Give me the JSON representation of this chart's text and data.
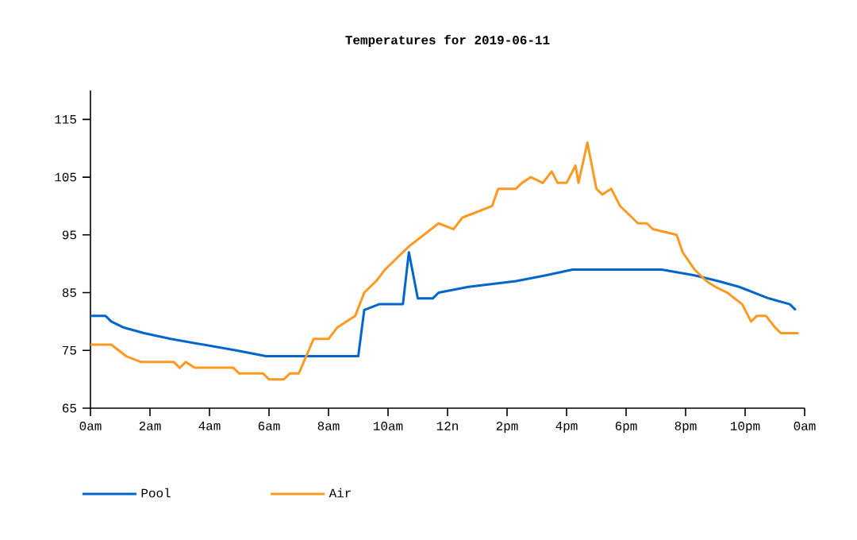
{
  "chart_data": {
    "type": "line",
    "title": "Temperatures for 2019-06-11",
    "xlim": [
      "2019-06-11T00:00",
      "2019-06-12T00:00"
    ],
    "ylim": [
      65,
      120
    ],
    "xticks": [
      {
        "value": "2019-06-11T00:00",
        "label": "0am"
      },
      {
        "value": "2019-06-11T02:00",
        "label": "2am"
      },
      {
        "value": "2019-06-11T04:00",
        "label": "4am"
      },
      {
        "value": "2019-06-11T06:00",
        "label": "6am"
      },
      {
        "value": "2019-06-11T08:00",
        "label": "8am"
      },
      {
        "value": "2019-06-11T10:00",
        "label": "10am"
      },
      {
        "value": "2019-06-11T12:00",
        "label": "12n"
      },
      {
        "value": "2019-06-11T14:00",
        "label": "2pm"
      },
      {
        "value": "2019-06-11T16:00",
        "label": "4pm"
      },
      {
        "value": "2019-06-11T18:00",
        "label": "6pm"
      },
      {
        "value": "2019-06-11T20:00",
        "label": "8pm"
      },
      {
        "value": "2019-06-11T22:00",
        "label": "10pm"
      },
      {
        "value": "2019-06-12T00:00",
        "label": "0am"
      }
    ],
    "yticks": [
      65,
      75,
      85,
      95,
      105,
      115
    ],
    "legend": "bottom",
    "marker": "none",
    "line_style": "solid",
    "series": [
      {
        "name": "Pool",
        "color": "#0066cc",
        "x": [
          "2019-06-11T00:00",
          "2019-06-11T00:30",
          "2019-06-11T00:42",
          "2019-06-11T01:06",
          "2019-06-11T01:48",
          "2019-06-11T02:42",
          "2019-06-11T03:48",
          "2019-06-11T04:54",
          "2019-06-11T05:54",
          "2019-06-11T09:00",
          "2019-06-11T09:12",
          "2019-06-11T09:42",
          "2019-06-11T10:30",
          "2019-06-11T10:42",
          "2019-06-11T11:00",
          "2019-06-11T11:30",
          "2019-06-11T11:42",
          "2019-06-11T12:42",
          "2019-06-11T14:18",
          "2019-06-11T15:18",
          "2019-06-11T16:12",
          "2019-06-11T19:12",
          "2019-06-11T20:18",
          "2019-06-11T21:06",
          "2019-06-11T21:48",
          "2019-06-11T22:18",
          "2019-06-11T22:48",
          "2019-06-11T23:30",
          "2019-06-11T23:42"
        ],
        "values": [
          81,
          81,
          80,
          79,
          78,
          77,
          76,
          75,
          74,
          74,
          82,
          83,
          83,
          92,
          84,
          84,
          85,
          86,
          87,
          88,
          89,
          89,
          88,
          87,
          86,
          85,
          84,
          83,
          82
        ]
      },
      {
        "name": "Air",
        "color": "#ff9922",
        "x": [
          "2019-06-11T00:00",
          "2019-06-11T00:42",
          "2019-06-11T01:12",
          "2019-06-11T01:42",
          "2019-06-11T02:48",
          "2019-06-11T03:00",
          "2019-06-11T03:12",
          "2019-06-11T03:30",
          "2019-06-11T04:48",
          "2019-06-11T05:00",
          "2019-06-11T05:48",
          "2019-06-11T06:00",
          "2019-06-11T06:30",
          "2019-06-11T06:42",
          "2019-06-11T07:00",
          "2019-06-11T07:30",
          "2019-06-11T08:00",
          "2019-06-11T08:18",
          "2019-06-11T08:54",
          "2019-06-11T09:12",
          "2019-06-11T09:36",
          "2019-06-11T09:54",
          "2019-06-11T10:42",
          "2019-06-11T11:12",
          "2019-06-11T11:42",
          "2019-06-11T12:12",
          "2019-06-11T12:30",
          "2019-06-11T13:00",
          "2019-06-11T13:30",
          "2019-06-11T13:42",
          "2019-06-11T14:18",
          "2019-06-11T14:30",
          "2019-06-11T14:48",
          "2019-06-11T15:12",
          "2019-06-11T15:30",
          "2019-06-11T15:42",
          "2019-06-11T16:00",
          "2019-06-11T16:18",
          "2019-06-11T16:24",
          "2019-06-11T16:42",
          "2019-06-11T17:00",
          "2019-06-11T17:12",
          "2019-06-11T17:30",
          "2019-06-11T17:48",
          "2019-06-11T18:24",
          "2019-06-11T18:42",
          "2019-06-11T18:54",
          "2019-06-11T19:42",
          "2019-06-11T19:54",
          "2019-06-11T20:18",
          "2019-06-11T20:42",
          "2019-06-11T21:00",
          "2019-06-11T21:24",
          "2019-06-11T21:54",
          "2019-06-11T22:12",
          "2019-06-11T22:24",
          "2019-06-11T22:42",
          "2019-06-11T23:00",
          "2019-06-11T23:12",
          "2019-06-11T23:48"
        ],
        "values": [
          76,
          76,
          74,
          73,
          73,
          72,
          73,
          72,
          72,
          71,
          71,
          70,
          70,
          71,
          71,
          77,
          77,
          79,
          81,
          85,
          87,
          89,
          93,
          95,
          97,
          96,
          98,
          99,
          100,
          103,
          103,
          104,
          105,
          104,
          106,
          104,
          104,
          107,
          104,
          111,
          103,
          102,
          103,
          100,
          97,
          97,
          96,
          95,
          92,
          89,
          87,
          86,
          85,
          83,
          80,
          81,
          81,
          79,
          78,
          78
        ]
      }
    ]
  }
}
